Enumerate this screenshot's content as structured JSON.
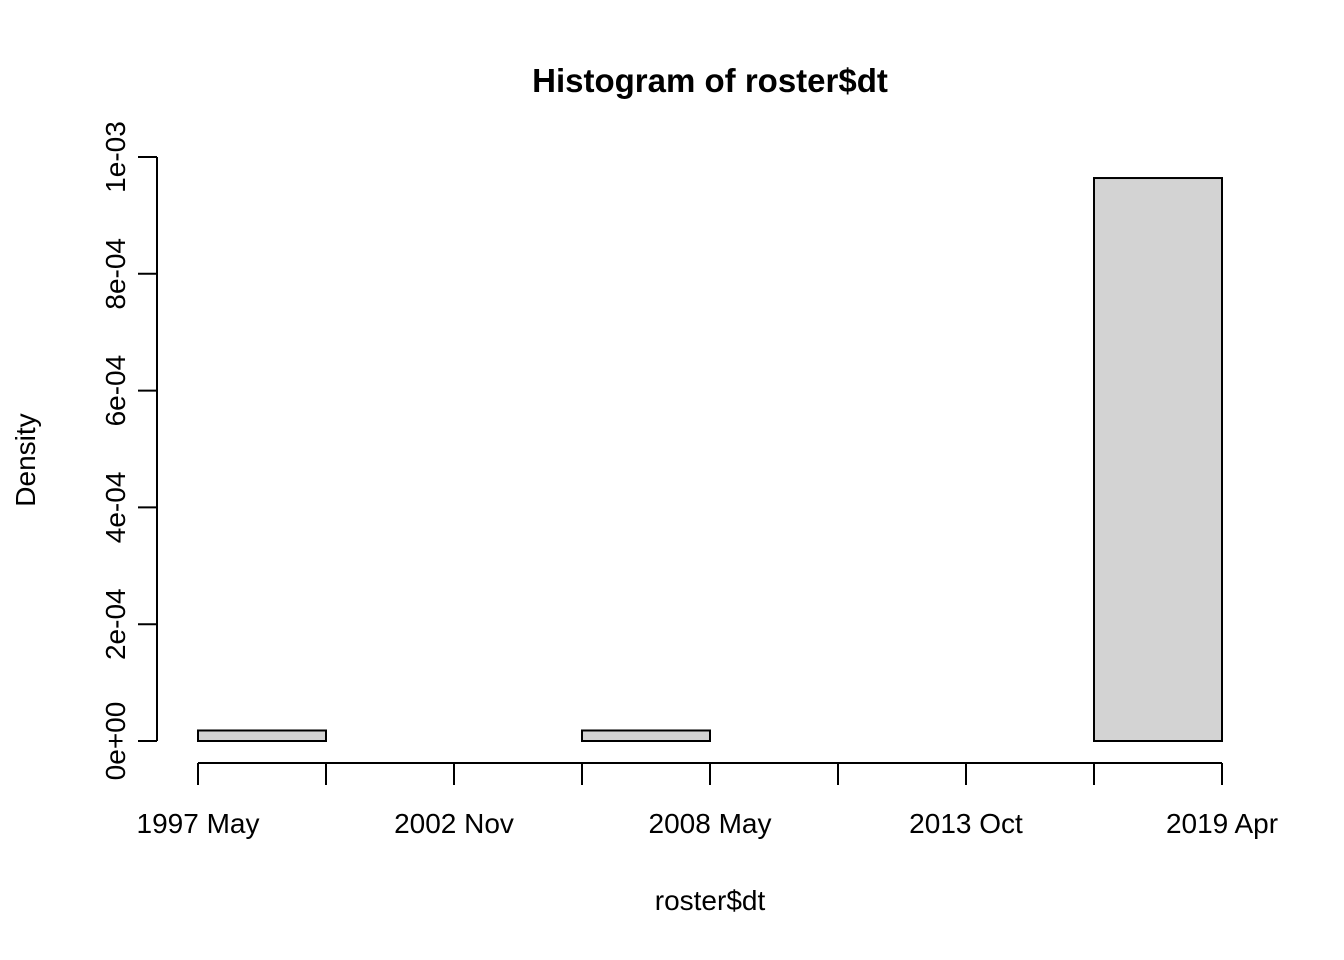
{
  "chart_data": {
    "type": "bar",
    "title": "Histogram of roster$dt",
    "xlabel": "roster$dt",
    "ylabel": "Density",
    "ylim": [
      0,
      0.001
    ],
    "y_ticks": [
      0,
      0.0002,
      0.0004,
      0.0006,
      0.0008,
      0.001
    ],
    "y_tick_labels": [
      "0e+00",
      "2e-04",
      "4e-04",
      "6e-04",
      "8e-04",
      "1e-03"
    ],
    "x_ticks": [
      "1997 May",
      "2000 Feb",
      "2002 Nov",
      "2005 Aug",
      "2008 May",
      "2011 Feb",
      "2013 Oct",
      "2016 Jul",
      "2019 Apr"
    ],
    "x_tick_labels": [
      "1997 May",
      "",
      "2002 Nov",
      "",
      "2008 May",
      "",
      "2013 Oct",
      "",
      "2019 Apr"
    ],
    "bins": [
      {
        "start": "1997 May",
        "end": "2000 Feb",
        "density": 1.8e-05
      },
      {
        "start": "2000 Feb",
        "end": "2002 Nov",
        "density": 0
      },
      {
        "start": "2002 Nov",
        "end": "2005 Aug",
        "density": 0
      },
      {
        "start": "2005 Aug",
        "end": "2008 May",
        "density": 1.8e-05
      },
      {
        "start": "2008 May",
        "end": "2011 Feb",
        "density": 0
      },
      {
        "start": "2011 Feb",
        "end": "2013 Oct",
        "density": 0
      },
      {
        "start": "2013 Oct",
        "end": "2016 Jul",
        "density": 0
      },
      {
        "start": "2016 Jul",
        "end": "2019 Apr",
        "density": 0.000964
      }
    ],
    "colors": {
      "bar_fill": "#d3d3d3",
      "bar_stroke": "#000000"
    },
    "grid": false,
    "legend": "none"
  }
}
